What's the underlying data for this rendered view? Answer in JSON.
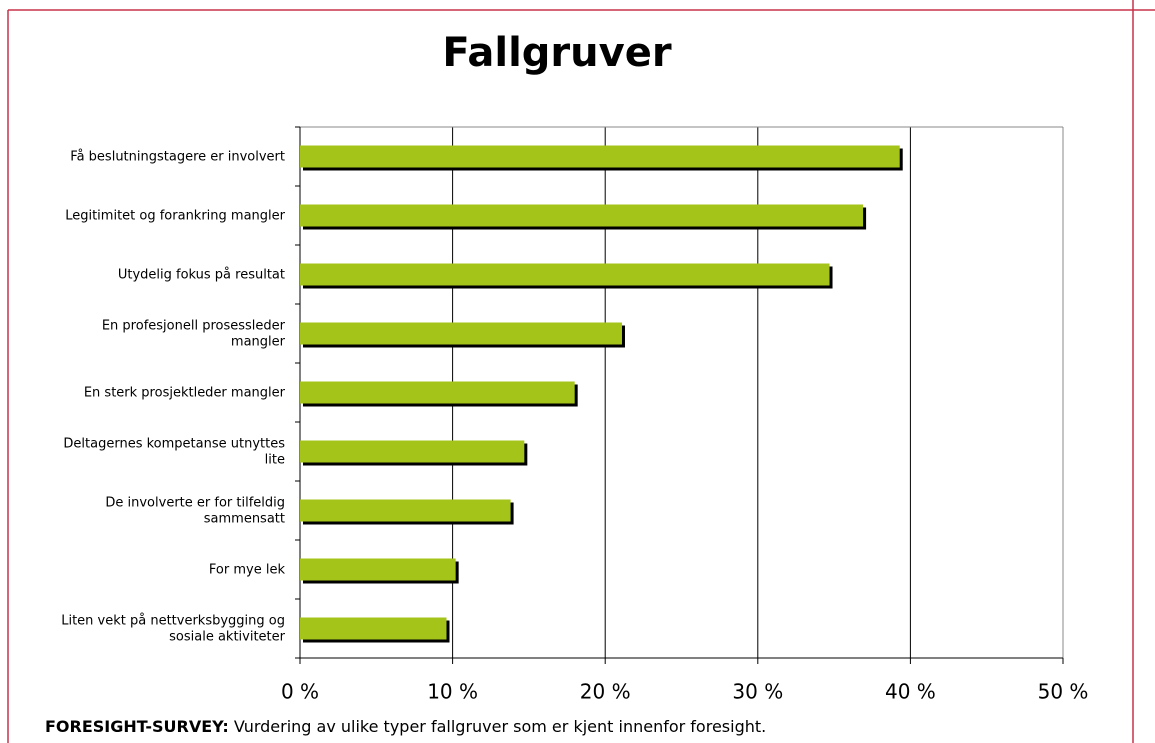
{
  "chart_data": {
    "type": "bar",
    "orientation": "horizontal",
    "title": "Fallgruver",
    "categories": [
      "Få beslutningstagere er involvert",
      "Legitimitet og forankring mangler",
      "Utydelig fokus på resultat",
      "En profesjonell prosessleder mangler",
      "En sterk prosjektleder mangler",
      "Deltagernes kompetanse utnyttes lite",
      "De involverte er for tilfeldig sammensatt",
      "For mye lek",
      "Liten vekt på nettverksbygging og sosiale aktiviteter"
    ],
    "values": [
      39.3,
      36.9,
      34.7,
      21.1,
      18.0,
      14.7,
      13.8,
      10.2,
      9.6
    ],
    "color": "#a5c41a",
    "xlim": [
      0,
      50
    ],
    "xticks": [
      {
        "value": 0,
        "label": "0 %"
      },
      {
        "value": 10,
        "label": "10 %"
      },
      {
        "value": 20,
        "label": "20 %"
      },
      {
        "value": 30,
        "label": "30 %"
      },
      {
        "value": 40,
        "label": "40 %"
      },
      {
        "value": 50,
        "label": "50 %"
      }
    ],
    "grid": true,
    "caption_label": "FORESIGHT-SURVEY:",
    "caption_text": "Vurdering av ulike typer fallgruver som er kjent innenfor foresight."
  }
}
